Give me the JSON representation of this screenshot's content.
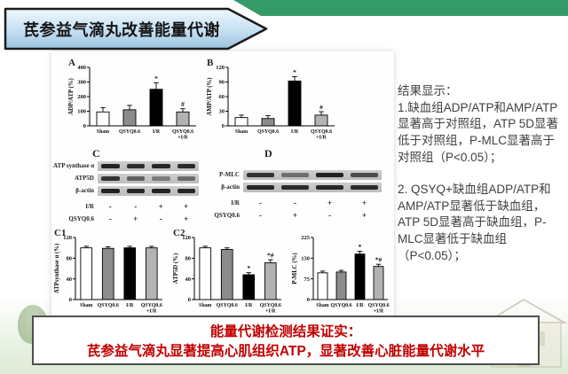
{
  "slide": {
    "title": "芪参益气滴丸改善能量代谢",
    "conclusion_line1": "能量代谢检测结果证实：",
    "conclusion_line2": "芪参益气滴丸显著提高心肌组织ATP，显著改善心脏能量代谢水平"
  },
  "results_text": {
    "heading": "结果显示：",
    "point1": "1.缺血组ADP/ATP和AMP/ATP显著高于对照组，ATP 5D显著低于对照组，P-MLC显著高于对照组（P<0.05）；",
    "point2": "2. QSYQ+缺血组ADP/ATP和AMP/ATP显著低于缺血组，ATP 5D显著高于缺血组，P-MLC显著低于缺血组（P<0.05）；"
  },
  "colors": {
    "header_green": "#349a67",
    "banner_blue_top": "#eef7fd",
    "banner_blue_mid": "#c9e2f4",
    "banner_blue_bottom": "#9cc3e0",
    "banner_border": "#1b1b1b",
    "conclusion_red": "#c00000",
    "bar_fills": [
      "#ffffff",
      "#8c8c8c",
      "#000000",
      "#b3b3b3"
    ]
  },
  "chart_data": [
    {
      "type": "bar",
      "panel": "A",
      "ylabel": "ADP/ATP (%)",
      "ylim": [
        0,
        400
      ],
      "yticks": [
        0,
        100,
        200,
        300,
        400
      ],
      "categories": [
        "Sham",
        "QSYQ0.6",
        "I/R",
        "QSYQ0.6+I/R"
      ],
      "values": [
        95,
        110,
        250,
        95
      ],
      "errors": [
        30,
        30,
        45,
        22
      ],
      "annotations": [
        "",
        "",
        "*",
        "#"
      ]
    },
    {
      "type": "bar",
      "panel": "B",
      "ylabel": "AMP/ATP (%)",
      "ylim": [
        0,
        120
      ],
      "yticks": [
        0,
        30,
        60,
        90,
        120
      ],
      "categories": [
        "Sham",
        "QSYQ0.6",
        "I/R",
        "QSYQ0.6+I/R"
      ],
      "values": [
        17,
        15,
        92,
        22
      ],
      "errors": [
        5,
        6,
        9,
        7
      ],
      "annotations": [
        "",
        "",
        "*",
        "#"
      ]
    },
    {
      "type": "bar",
      "panel": "C1",
      "ylabel": "ATPsynthase α (%)",
      "ylim": [
        0,
        120
      ],
      "yticks": [
        0,
        40,
        80,
        120
      ],
      "categories": [
        "Sham",
        "QSYQ0.6",
        "I/R",
        "QSYQ0.6+I/R"
      ],
      "values": [
        100,
        99,
        100,
        100
      ],
      "errors": [
        3,
        3,
        3,
        3
      ],
      "annotations": [
        "",
        "",
        "",
        ""
      ]
    },
    {
      "type": "bar",
      "panel": "C2",
      "ylabel": "ATP5D (%)",
      "ylim": [
        0,
        120
      ],
      "yticks": [
        0,
        40,
        80,
        120
      ],
      "categories": [
        "Sham",
        "QSYQ0.6",
        "I/R",
        "QSYQ0.6+I/R"
      ],
      "values": [
        100,
        97,
        48,
        71
      ],
      "errors": [
        3,
        3,
        4,
        6
      ],
      "annotations": [
        "",
        "",
        "*",
        "*#"
      ]
    },
    {
      "type": "bar",
      "panel": "",
      "ylabel": "P-MLC (%)",
      "ylim": [
        0,
        225
      ],
      "yticks": [
        0,
        75,
        150,
        225
      ],
      "categories": [
        "Sham",
        "QSYQ0.6",
        "I/R",
        "QSYQ0.6+I/R"
      ],
      "values": [
        97,
        100,
        165,
        120
      ],
      "errors": [
        6,
        6,
        10,
        8
      ],
      "annotations": [
        "",
        "",
        "*",
        "*#"
      ]
    }
  ],
  "blots": [
    {
      "panel": "C",
      "rows": [
        {
          "label": "ATP synthase α",
          "lanes": [
            0.95,
            0.88,
            0.93,
            0.9
          ]
        },
        {
          "label": "ATP5D",
          "lanes": [
            0.85,
            0.6,
            0.42,
            0.52
          ]
        },
        {
          "label": "β-actin",
          "lanes": [
            0.95,
            0.93,
            0.95,
            0.93
          ]
        }
      ],
      "treatments": [
        {
          "label": "I/R",
          "signs": [
            "-",
            "-",
            "+",
            "+"
          ]
        },
        {
          "label": "QSYQ0.6",
          "signs": [
            "-",
            "+",
            "-",
            "+"
          ]
        }
      ]
    },
    {
      "panel": "D",
      "rows": [
        {
          "label": "P-MLC",
          "lanes": [
            0.85,
            0.5,
            0.95,
            0.7
          ]
        },
        {
          "label": "β-actin",
          "lanes": [
            0.92,
            0.9,
            0.92,
            0.9
          ]
        }
      ],
      "treatments": [
        {
          "label": "I/R",
          "signs": [
            "-",
            "-",
            "+",
            "+"
          ]
        },
        {
          "label": "QSYQ0.6",
          "signs": [
            "-",
            "+",
            "-",
            "+"
          ]
        }
      ]
    }
  ]
}
